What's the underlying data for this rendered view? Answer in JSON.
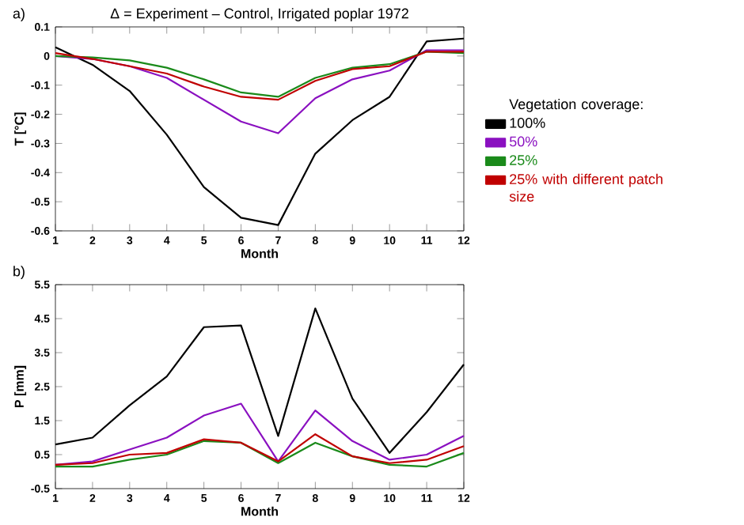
{
  "chart_data": [
    {
      "type": "line",
      "title": "Δ = Experiment – Control, Irrigated poplar 1972",
      "xlabel": "Month",
      "ylabel": "T [°C]",
      "annotations": [
        "a)"
      ],
      "x": [
        1,
        2,
        3,
        4,
        5,
        6,
        7,
        8,
        9,
        10,
        11,
        12
      ],
      "xlim": [
        1,
        12
      ],
      "xticks": [
        1,
        2,
        3,
        4,
        5,
        6,
        7,
        8,
        9,
        10,
        11,
        12
      ],
      "ylim": [
        -0.6,
        0.1
      ],
      "yticks": [
        -0.6,
        -0.5,
        -0.4,
        -0.3,
        -0.2,
        -0.1,
        0,
        0.1
      ],
      "legend": "right",
      "legend_title": "Vegetation coverage:",
      "line_style": "solid",
      "series": [
        {
          "name": "100%",
          "color": "#000000",
          "values": [
            0.03,
            -0.03,
            -0.12,
            -0.27,
            -0.45,
            -0.555,
            -0.58,
            -0.335,
            -0.22,
            -0.14,
            0.05,
            0.06
          ]
        },
        {
          "name": "50%",
          "color": "#8a10c0",
          "values": [
            0.0,
            -0.01,
            -0.035,
            -0.075,
            -0.15,
            -0.225,
            -0.265,
            -0.145,
            -0.08,
            -0.05,
            0.02,
            0.02
          ]
        },
        {
          "name": "25%",
          "color": "#1a8a1a",
          "values": [
            0.0,
            -0.005,
            -0.015,
            -0.04,
            -0.08,
            -0.125,
            -0.14,
            -0.075,
            -0.04,
            -0.028,
            0.015,
            0.01
          ]
        },
        {
          "name": "25% with different patch size",
          "color": "#c00000",
          "values": [
            0.01,
            -0.01,
            -0.035,
            -0.06,
            -0.105,
            -0.14,
            -0.15,
            -0.085,
            -0.045,
            -0.035,
            0.015,
            0.015
          ]
        }
      ]
    },
    {
      "type": "line",
      "xlabel": "Month",
      "ylabel": "P [mm]",
      "annotations": [
        "b)"
      ],
      "x": [
        1,
        2,
        3,
        4,
        5,
        6,
        7,
        8,
        9,
        10,
        11,
        12
      ],
      "xlim": [
        1,
        12
      ],
      "xticks": [
        1,
        2,
        3,
        4,
        5,
        6,
        7,
        8,
        9,
        10,
        11,
        12
      ],
      "ylim": [
        -0.5,
        5.5
      ],
      "yticks": [
        -0.5,
        0.5,
        1.5,
        2.5,
        3.5,
        4.5,
        5.5
      ],
      "line_style": "solid",
      "series": [
        {
          "color": "#000000",
          "values": [
            0.8,
            1.0,
            1.95,
            2.8,
            4.25,
            4.3,
            1.05,
            4.8,
            2.15,
            0.55,
            1.75,
            3.15
          ]
        },
        {
          "color": "#8a10c0",
          "values": [
            0.2,
            0.3,
            0.65,
            1.0,
            1.65,
            2.0,
            0.3,
            1.8,
            0.9,
            0.35,
            0.5,
            1.05
          ]
        },
        {
          "color": "#1a8a1a",
          "values": [
            0.15,
            0.15,
            0.35,
            0.5,
            0.9,
            0.85,
            0.25,
            0.85,
            0.45,
            0.2,
            0.15,
            0.55
          ]
        },
        {
          "color": "#c00000",
          "values": [
            0.2,
            0.25,
            0.5,
            0.55,
            0.95,
            0.85,
            0.3,
            1.1,
            0.45,
            0.25,
            0.35,
            0.75
          ]
        }
      ]
    }
  ]
}
